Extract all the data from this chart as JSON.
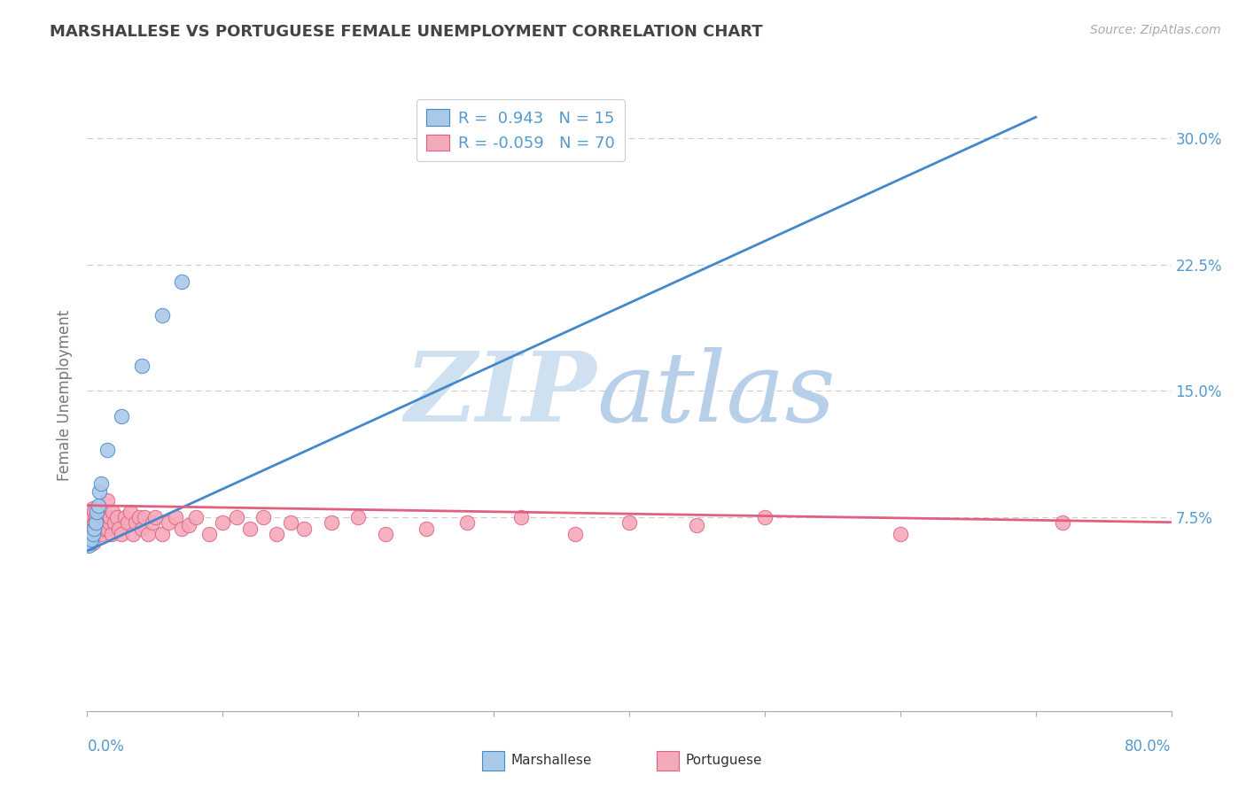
{
  "title": "MARSHALLESE VS PORTUGUESE FEMALE UNEMPLOYMENT CORRELATION CHART",
  "source": "Source: ZipAtlas.com",
  "ylabel": "Female Unemployment",
  "xlim": [
    0.0,
    0.8
  ],
  "ylim": [
    -0.04,
    0.335
  ],
  "marshallese_R": 0.943,
  "marshallese_N": 15,
  "portuguese_R": -0.059,
  "portuguese_N": 70,
  "marshallese_color": "#aac9e8",
  "portuguese_color": "#f5aabb",
  "marshallese_line_color": "#4488cc",
  "portuguese_line_color": "#e06080",
  "marshallese_x": [
    0.001,
    0.002,
    0.003,
    0.004,
    0.005,
    0.006,
    0.007,
    0.008,
    0.009,
    0.01,
    0.015,
    0.025,
    0.04,
    0.055,
    0.07
  ],
  "marshallese_y": [
    0.058,
    0.06,
    0.062,
    0.065,
    0.068,
    0.072,
    0.078,
    0.082,
    0.09,
    0.095,
    0.115,
    0.135,
    0.165,
    0.195,
    0.215
  ],
  "portuguese_x": [
    0.001,
    0.002,
    0.002,
    0.003,
    0.003,
    0.004,
    0.004,
    0.004,
    0.005,
    0.005,
    0.005,
    0.006,
    0.006,
    0.007,
    0.007,
    0.008,
    0.008,
    0.009,
    0.01,
    0.01,
    0.012,
    0.013,
    0.014,
    0.015,
    0.015,
    0.016,
    0.017,
    0.018,
    0.019,
    0.02,
    0.022,
    0.023,
    0.025,
    0.028,
    0.03,
    0.032,
    0.034,
    0.036,
    0.038,
    0.04,
    0.042,
    0.045,
    0.048,
    0.05,
    0.055,
    0.06,
    0.065,
    0.07,
    0.075,
    0.08,
    0.09,
    0.1,
    0.11,
    0.12,
    0.13,
    0.14,
    0.15,
    0.16,
    0.18,
    0.2,
    0.22,
    0.25,
    0.28,
    0.32,
    0.36,
    0.4,
    0.45,
    0.5,
    0.6,
    0.72
  ],
  "portuguese_y": [
    0.07,
    0.065,
    0.075,
    0.068,
    0.075,
    0.06,
    0.07,
    0.08,
    0.065,
    0.072,
    0.078,
    0.068,
    0.075,
    0.065,
    0.072,
    0.068,
    0.075,
    0.07,
    0.065,
    0.075,
    0.068,
    0.072,
    0.075,
    0.068,
    0.085,
    0.072,
    0.075,
    0.065,
    0.078,
    0.072,
    0.075,
    0.068,
    0.065,
    0.075,
    0.072,
    0.078,
    0.065,
    0.072,
    0.075,
    0.068,
    0.075,
    0.065,
    0.072,
    0.075,
    0.065,
    0.072,
    0.075,
    0.068,
    0.07,
    0.075,
    0.065,
    0.072,
    0.075,
    0.068,
    0.075,
    0.065,
    0.072,
    0.068,
    0.072,
    0.075,
    0.065,
    0.068,
    0.072,
    0.075,
    0.065,
    0.072,
    0.07,
    0.075,
    0.065,
    0.072
  ],
  "ytick_vals": [
    0.075,
    0.15,
    0.225,
    0.3
  ],
  "ytick_labels": [
    "7.5%",
    "15.0%",
    "22.5%",
    "30.0%"
  ],
  "background_color": "#ffffff",
  "grid_color": "#cccccc",
  "title_color": "#444444",
  "axis_color": "#5599cc",
  "watermark_zip_color": "#cfe0f0",
  "watermark_atlas_color": "#b8cfea"
}
